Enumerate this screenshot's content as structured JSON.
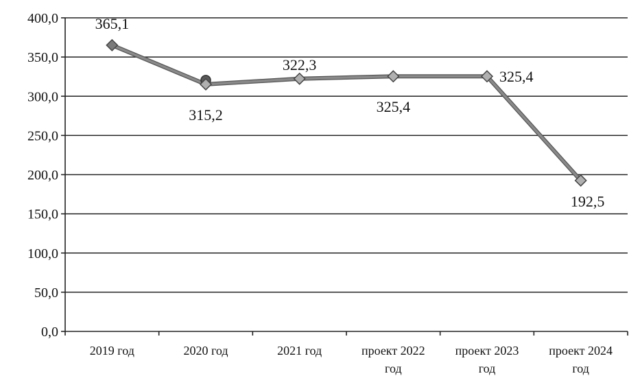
{
  "chart_data": {
    "type": "line",
    "categories": [
      "2019 год",
      "2020 год",
      "2021 год",
      "проект 2022 год",
      "проект 2023 год",
      "проект 2024 год"
    ],
    "category_lines": [
      [
        "2019 год"
      ],
      [
        "2020 год"
      ],
      [
        "2021 год"
      ],
      [
        "проект 2022",
        "год"
      ],
      [
        "проект 2023",
        "год"
      ],
      [
        "проект 2024",
        "год"
      ]
    ],
    "values": [
      365.1,
      315.2,
      322.3,
      325.4,
      325.4,
      192.5
    ],
    "data_labels": [
      "365,1",
      "315,2",
      "322,3",
      "325,4",
      "325,4",
      "192,5"
    ],
    "ylim": [
      0,
      400
    ],
    "yticks": [
      0,
      50,
      100,
      150,
      200,
      250,
      300,
      350,
      400
    ],
    "ytick_labels": [
      "0,0",
      "50,0",
      "100,0",
      "150,0",
      "200,0",
      "250,0",
      "300,0",
      "350,0",
      "400,0"
    ],
    "grid": true,
    "colors": {
      "line": "#8a8a8a",
      "marker": "#b0b0b0",
      "marker_2020": "#5a5a5a",
      "grid": "#222222",
      "axis": "#222222"
    }
  }
}
